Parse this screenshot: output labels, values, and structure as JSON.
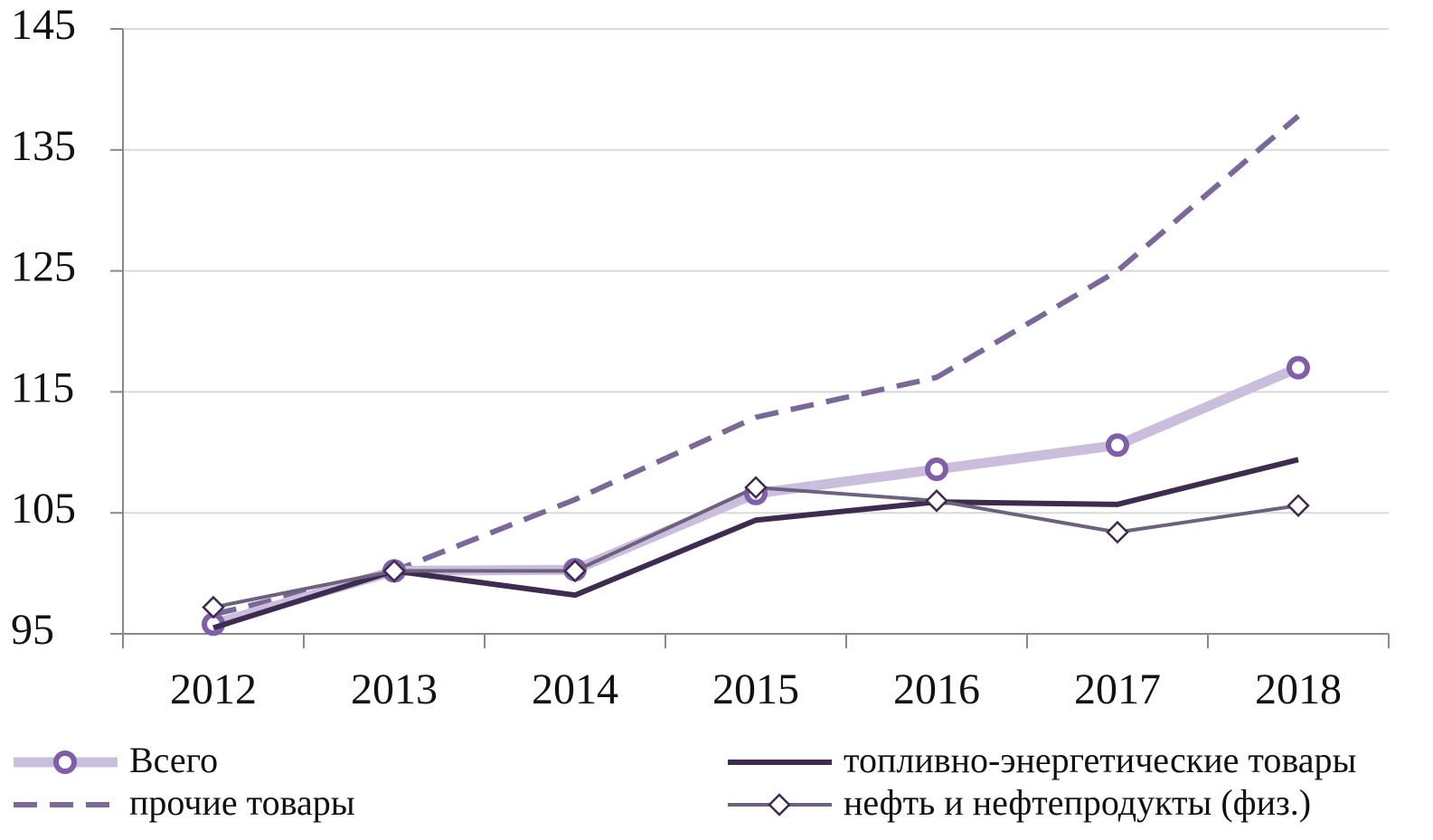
{
  "chart_data": {
    "type": "line",
    "categories": [
      "2012",
      "2013",
      "2014",
      "2015",
      "2016",
      "2017",
      "2018"
    ],
    "series": [
      {
        "name": "Всего",
        "color": "#c9bfdc",
        "marker_color": "#7e5fa8",
        "marker": "circle",
        "line_style": "solid",
        "values": [
          95.8,
          100.2,
          100.3,
          106.6,
          108.6,
          110.6,
          117.0
        ]
      },
      {
        "name": "топливно-энергетические товары",
        "color": "#3d2b50",
        "line_style": "solid",
        "values": [
          95.5,
          100.2,
          98.2,
          104.4,
          105.9,
          105.7,
          109.4
        ]
      },
      {
        "name": "прочие товары",
        "color": "#7a6898",
        "line_style": "dashed",
        "values": [
          96.6,
          100.2,
          106.1,
          112.9,
          116.2,
          125.0,
          137.8
        ]
      },
      {
        "name": "нефть и нефтепродукты (физ.)",
        "color": "#6e6180",
        "marker_color": "#3d2b50",
        "marker": "diamond",
        "line_style": "solid",
        "values": [
          97.2,
          100.2,
          100.2,
          107.1,
          106.0,
          103.4,
          105.6
        ]
      }
    ],
    "ylim": [
      95,
      145
    ],
    "yticks": [
      95,
      105,
      115,
      125,
      135,
      145
    ],
    "grid": true
  }
}
